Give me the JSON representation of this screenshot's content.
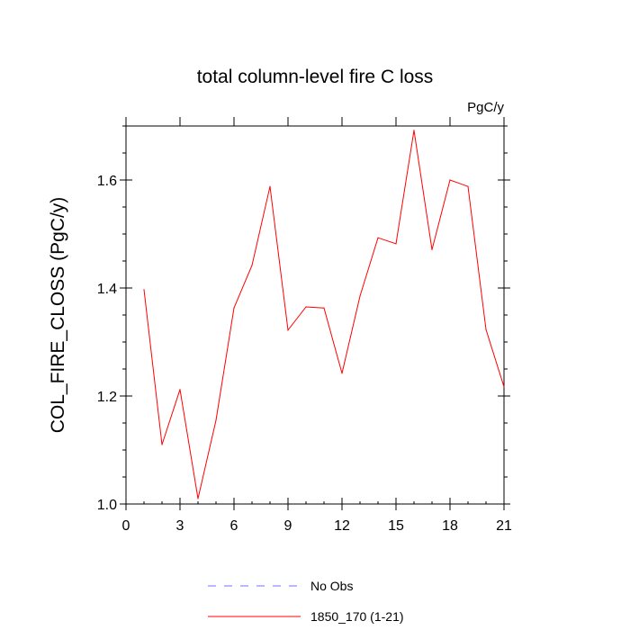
{
  "chart_data": {
    "type": "line",
    "title": "total column-level fire C loss",
    "units_label": "PgC/y",
    "ylabel": "COL_FIRE_CLOSS  (PgC/y)",
    "xlabel": "",
    "xlim": [
      0,
      21
    ],
    "ylim": [
      1.0,
      1.7
    ],
    "x_ticks": [
      0,
      3,
      6,
      9,
      12,
      15,
      18,
      21
    ],
    "x_tick_labels": [
      "0",
      "3",
      "6",
      "9",
      "12",
      "15",
      "18",
      "21"
    ],
    "y_ticks": [
      1.0,
      1.2,
      1.4,
      1.6
    ],
    "y_tick_labels": [
      "1.0",
      "1.2",
      "1.4",
      "1.6"
    ],
    "grid": false,
    "legend_position": "bottom",
    "series": [
      {
        "name": "No Obs",
        "color": "#7070ff",
        "dashed": true,
        "x": [],
        "values": []
      },
      {
        "name": "1850_170 (1-21)",
        "color": "#ff0000",
        "dashed": false,
        "x": [
          1,
          2,
          3,
          4,
          5,
          6,
          7,
          8,
          9,
          10,
          11,
          12,
          13,
          14,
          15,
          16,
          17,
          18,
          19,
          20,
          21
        ],
        "values": [
          1.397,
          1.11,
          1.212,
          1.01,
          1.155,
          1.363,
          1.442,
          1.588,
          1.322,
          1.365,
          1.363,
          1.242,
          1.385,
          1.493,
          1.482,
          1.692,
          1.471,
          1.6,
          1.588,
          1.323,
          1.217
        ]
      }
    ]
  }
}
